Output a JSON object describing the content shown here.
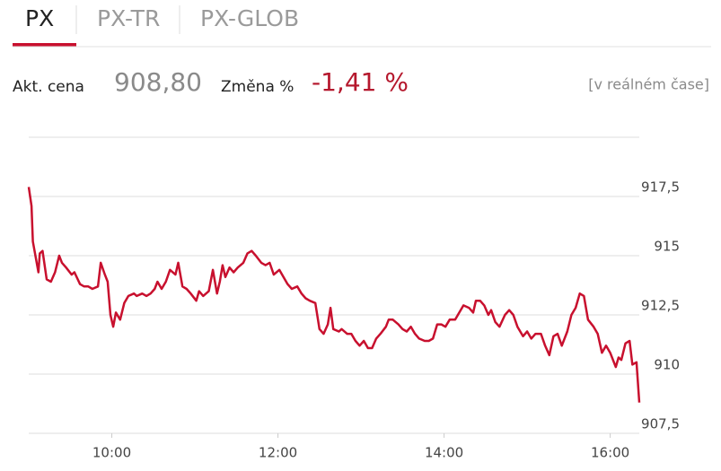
{
  "tabs": {
    "items": [
      "PX",
      "PX-TR",
      "PX-GLOB"
    ],
    "active": 0
  },
  "quote": {
    "price_label": "Akt. cena",
    "price": "908,80",
    "change_label": "Změna %",
    "change": "-1,41 %",
    "realtime": "[v reálném čase]"
  },
  "chart_data": {
    "type": "line",
    "color": "#c8102e",
    "grid": true,
    "x": [
      "09:00",
      "09:02",
      "09:03",
      "09:07",
      "09:08",
      "09:10",
      "09:13",
      "09:16",
      "09:19",
      "09:22",
      "09:24",
      "09:27",
      "09:31",
      "09:33",
      "09:37",
      "09:40",
      "09:43",
      "09:46",
      "09:50",
      "09:52",
      "09:55",
      "09:57",
      "09:59",
      "10:01",
      "10:03",
      "10:06",
      "10:09",
      "10:12",
      "10:16",
      "10:18",
      "10:22",
      "10:25",
      "10:28",
      "10:31",
      "10:33",
      "10:36",
      "10:39",
      "10:42",
      "10:46",
      "10:48",
      "10:51",
      "10:54",
      "10:57",
      "11:01",
      "11:03",
      "11:06",
      "11:10",
      "11:13",
      "11:16",
      "11:18",
      "11:20",
      "11:22",
      "11:25",
      "11:28",
      "11:31",
      "11:35",
      "11:38",
      "11:41",
      "11:44",
      "11:48",
      "11:51",
      "11:54",
      "11:57",
      "12:01",
      "12:04",
      "12:07",
      "12:10",
      "12:14",
      "12:17",
      "12:20",
      "12:23",
      "12:27",
      "12:30",
      "12:33",
      "12:36",
      "12:38",
      "12:40",
      "12:44",
      "12:46",
      "12:50",
      "12:53",
      "12:56",
      "12:59",
      "13:02",
      "13:05",
      "13:08",
      "13:11",
      "13:14",
      "13:18",
      "13:20",
      "13:23",
      "13:27",
      "13:30",
      "13:33",
      "13:36",
      "13:39",
      "13:42",
      "13:46",
      "13:49",
      "13:52",
      "13:55",
      "13:58",
      "14:01",
      "14:04",
      "14:08",
      "14:11",
      "14:14",
      "14:18",
      "14:21",
      "14:23",
      "14:26",
      "14:29",
      "14:32",
      "14:34",
      "14:37",
      "14:40",
      "14:44",
      "14:47",
      "14:50",
      "14:53",
      "14:57",
      "15:00",
      "15:03",
      "15:06",
      "15:10",
      "15:13",
      "15:16",
      "15:19",
      "15:22",
      "15:25",
      "15:29",
      "15:32",
      "15:35",
      "15:38",
      "15:41",
      "15:44",
      "15:48",
      "15:51",
      "15:54",
      "15:57",
      "16:00",
      "16:04",
      "16:06",
      "16:08",
      "16:11",
      "16:14",
      "16:16",
      "16:19",
      "16:21"
    ],
    "values": [
      917.9,
      917.1,
      915.6,
      914.3,
      915.1,
      915.2,
      914.0,
      913.9,
      914.3,
      915.0,
      914.7,
      914.5,
      914.2,
      914.3,
      913.8,
      913.7,
      913.7,
      913.6,
      913.7,
      914.7,
      914.2,
      913.9,
      912.5,
      912.0,
      912.6,
      912.3,
      913.0,
      913.3,
      913.4,
      913.3,
      913.4,
      913.3,
      913.4,
      913.6,
      913.9,
      913.6,
      913.9,
      914.4,
      914.2,
      914.7,
      913.7,
      913.6,
      913.4,
      913.1,
      913.5,
      913.3,
      913.5,
      914.4,
      913.4,
      913.9,
      914.6,
      914.1,
      914.5,
      914.3,
      914.5,
      914.7,
      915.1,
      915.2,
      915.0,
      914.7,
      914.6,
      914.7,
      914.2,
      914.4,
      914.1,
      913.8,
      913.6,
      913.7,
      913.4,
      913.2,
      913.1,
      913.0,
      911.9,
      911.7,
      912.1,
      912.8,
      911.9,
      911.8,
      911.9,
      911.7,
      911.7,
      911.4,
      911.2,
      911.4,
      911.1,
      911.1,
      911.5,
      911.7,
      912.0,
      912.3,
      912.3,
      912.1,
      911.9,
      911.8,
      912.0,
      911.7,
      911.5,
      911.4,
      911.4,
      911.5,
      912.1,
      912.1,
      912.0,
      912.3,
      912.3,
      912.6,
      912.9,
      912.8,
      912.6,
      913.1,
      913.1,
      912.9,
      912.5,
      912.7,
      912.2,
      912.0,
      912.5,
      912.7,
      912.5,
      912.0,
      911.6,
      911.8,
      911.5,
      911.7,
      911.7,
      911.2,
      910.8,
      911.6,
      911.7,
      911.2,
      911.8,
      912.5,
      912.8,
      913.4,
      913.3,
      912.3,
      912.0,
      911.7,
      910.9,
      911.2,
      910.9,
      910.3,
      910.7,
      910.6,
      911.3,
      911.4,
      910.4,
      910.5,
      908.8
    ],
    "xlim": [
      "09:00",
      "16:21"
    ],
    "xticks": [
      "10:00",
      "12:00",
      "14:00",
      "16:00"
    ],
    "ylim": [
      907.5,
      920
    ],
    "yticks": [
      {
        "value": 907.5,
        "label": "907,5"
      },
      910,
      {
        "value": 912.5,
        "label": "912,5"
      },
      915,
      {
        "value": 917.5,
        "label": "917,5"
      }
    ]
  }
}
